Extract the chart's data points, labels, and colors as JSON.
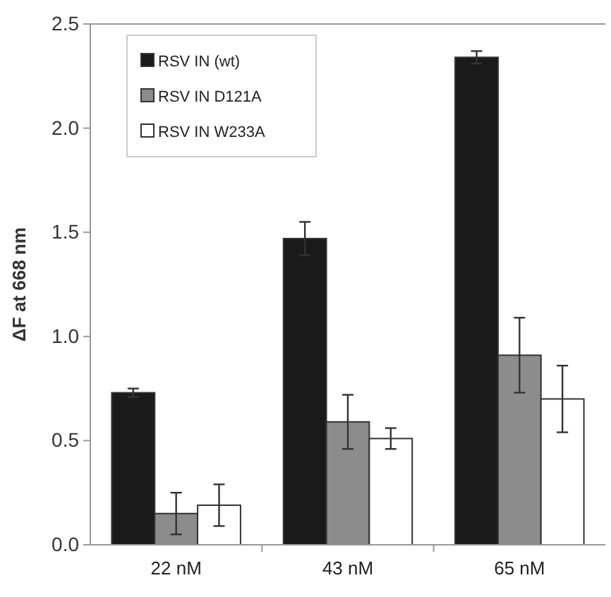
{
  "chart_data": {
    "type": "bar",
    "ylabel": "ΔF at 668 nm",
    "categories": [
      "22 nM",
      "43 nM",
      "65 nM"
    ],
    "series": [
      {
        "name": "RSV IN (wt)",
        "color": "#1a1a1a",
        "values": [
          0.73,
          1.47,
          2.34
        ],
        "errors": [
          0.02,
          0.08,
          0.03
        ]
      },
      {
        "name": "RSV IN D121A",
        "color": "#8c8c8c",
        "values": [
          0.15,
          0.59,
          0.91
        ],
        "errors": [
          0.1,
          0.13,
          0.18
        ]
      },
      {
        "name": "RSV IN W233A",
        "color": "#ffffff",
        "values": [
          0.19,
          0.51,
          0.7
        ],
        "errors": [
          0.1,
          0.05,
          0.16
        ]
      }
    ],
    "ylim": [
      0,
      2.5
    ],
    "yticks": [
      {
        "value": 0,
        "label": "0.0"
      },
      {
        "value": 0.5,
        "label": "0.5"
      },
      {
        "value": 1,
        "label": "1.0"
      },
      {
        "value": 1.5,
        "label": "1.5"
      },
      {
        "value": 2,
        "label": "2.0"
      },
      {
        "value": 2.5,
        "label": "2.5"
      }
    ],
    "grid": false,
    "legend": "top left"
  }
}
